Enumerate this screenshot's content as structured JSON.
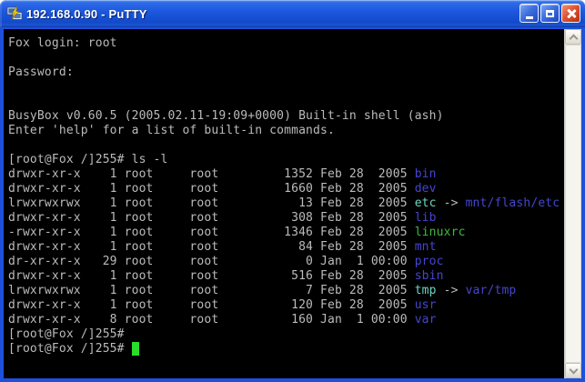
{
  "window": {
    "title": "192.168.0.90 - PuTTY",
    "controls": [
      {
        "label": "minimize"
      },
      {
        "label": "maximize"
      },
      {
        "label": "close"
      }
    ]
  },
  "icons": {
    "app": "putty-two-computers-lightning-icon",
    "minimize": "minimize-icon",
    "maximize": "maximize-icon",
    "close": "close-icon",
    "scroll_up": "chevron-up-icon",
    "scroll_down": "chevron-down-icon"
  },
  "colors": {
    "titlebar_blue": "#1C57DE",
    "border_blue": "#1E50DC",
    "close_red": "#DD5636",
    "terminal_bg": "#000000",
    "terminal_fg": "#BBBBBB",
    "dir_blue": "#4545D0",
    "symlink_cyan": "#6FD4C2",
    "exec_green": "#3FBB3F",
    "cursor_green": "#2ADD2A"
  },
  "terminal": {
    "lines": [
      [
        {
          "t": "Fox login: root",
          "c": "fg"
        }
      ],
      [],
      [
        {
          "t": "Password:",
          "c": "fg"
        }
      ],
      [],
      [],
      [
        {
          "t": "BusyBox v0.60.5 (2005.02.11-19:09+0000) Built-in shell (ash)",
          "c": "fg"
        }
      ],
      [
        {
          "t": "Enter 'help' for a list of built-in commands.",
          "c": "fg"
        }
      ],
      [],
      [
        {
          "t": "[root@Fox /]255# ls -l",
          "c": "fg"
        }
      ],
      [
        {
          "t": "drwxr-xr-x    1 root     root         1352 Feb 28  2005 ",
          "c": "fg"
        },
        {
          "t": "bin",
          "c": "dir"
        }
      ],
      [
        {
          "t": "drwxr-xr-x    1 root     root         1660 Feb 28  2005 ",
          "c": "fg"
        },
        {
          "t": "dev",
          "c": "dir"
        }
      ],
      [
        {
          "t": "lrwxrwxrwx    1 root     root           13 Feb 28  2005 ",
          "c": "fg"
        },
        {
          "t": "etc",
          "c": "lnk"
        },
        {
          "t": " -> ",
          "c": "fg"
        },
        {
          "t": "mnt/flash/etc",
          "c": "dir"
        }
      ],
      [
        {
          "t": "drwxr-xr-x    1 root     root          308 Feb 28  2005 ",
          "c": "fg"
        },
        {
          "t": "lib",
          "c": "dir"
        }
      ],
      [
        {
          "t": "-rwxr-xr-x    1 root     root         1346 Feb 28  2005 ",
          "c": "fg"
        },
        {
          "t": "linuxrc",
          "c": "exe"
        }
      ],
      [
        {
          "t": "drwxr-xr-x    1 root     root           84 Feb 28  2005 ",
          "c": "fg"
        },
        {
          "t": "mnt",
          "c": "dir"
        }
      ],
      [
        {
          "t": "dr-xr-xr-x   29 root     root            0 Jan  1 00:00 ",
          "c": "fg"
        },
        {
          "t": "proc",
          "c": "dir"
        }
      ],
      [
        {
          "t": "drwxr-xr-x    1 root     root          516 Feb 28  2005 ",
          "c": "fg"
        },
        {
          "t": "sbin",
          "c": "dir"
        }
      ],
      [
        {
          "t": "lrwxrwxrwx    1 root     root            7 Feb 28  2005 ",
          "c": "fg"
        },
        {
          "t": "tmp",
          "c": "lnk"
        },
        {
          "t": " -> ",
          "c": "fg"
        },
        {
          "t": "var/tmp",
          "c": "dir"
        }
      ],
      [
        {
          "t": "drwxr-xr-x    1 root     root          120 Feb 28  2005 ",
          "c": "fg"
        },
        {
          "t": "usr",
          "c": "dir"
        }
      ],
      [
        {
          "t": "drwxr-xr-x    8 root     root          160 Jan  1 00:00 ",
          "c": "fg"
        },
        {
          "t": "var",
          "c": "dir"
        }
      ],
      [
        {
          "t": "[root@Fox /]255#",
          "c": "fg"
        }
      ],
      [
        {
          "t": "[root@Fox /]255# ",
          "c": "fg"
        },
        {
          "t": " ",
          "c": "cur"
        }
      ]
    ]
  }
}
